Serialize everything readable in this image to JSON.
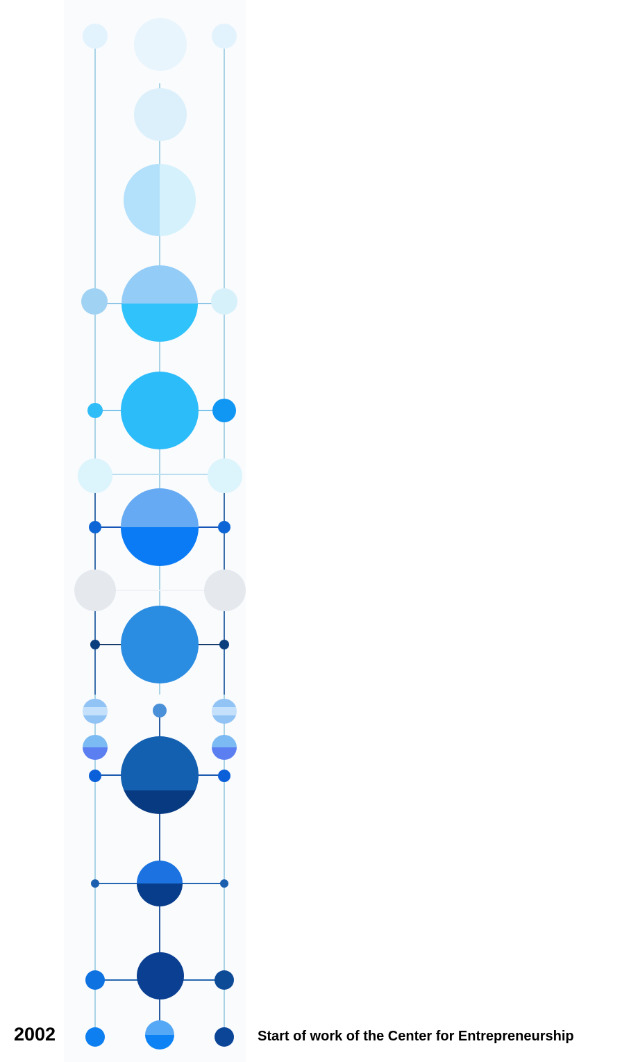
{
  "timeline": {
    "entries": [
      {
        "year": "2002",
        "event": "Start of work of the Center for Entrepreneurship"
      }
    ]
  },
  "colors": {
    "spine": "#a9d4e8",
    "dark_spine": "#0a3a7a",
    "pale": "#e3f3fd",
    "light": "#b3e0fb",
    "sky": "#2fbdf8",
    "bright": "#0e7ff5",
    "mid": "#2b8de2",
    "deep": "#0f4ea3",
    "navy": "#0b3f91",
    "grey": "#e5e9ee"
  }
}
